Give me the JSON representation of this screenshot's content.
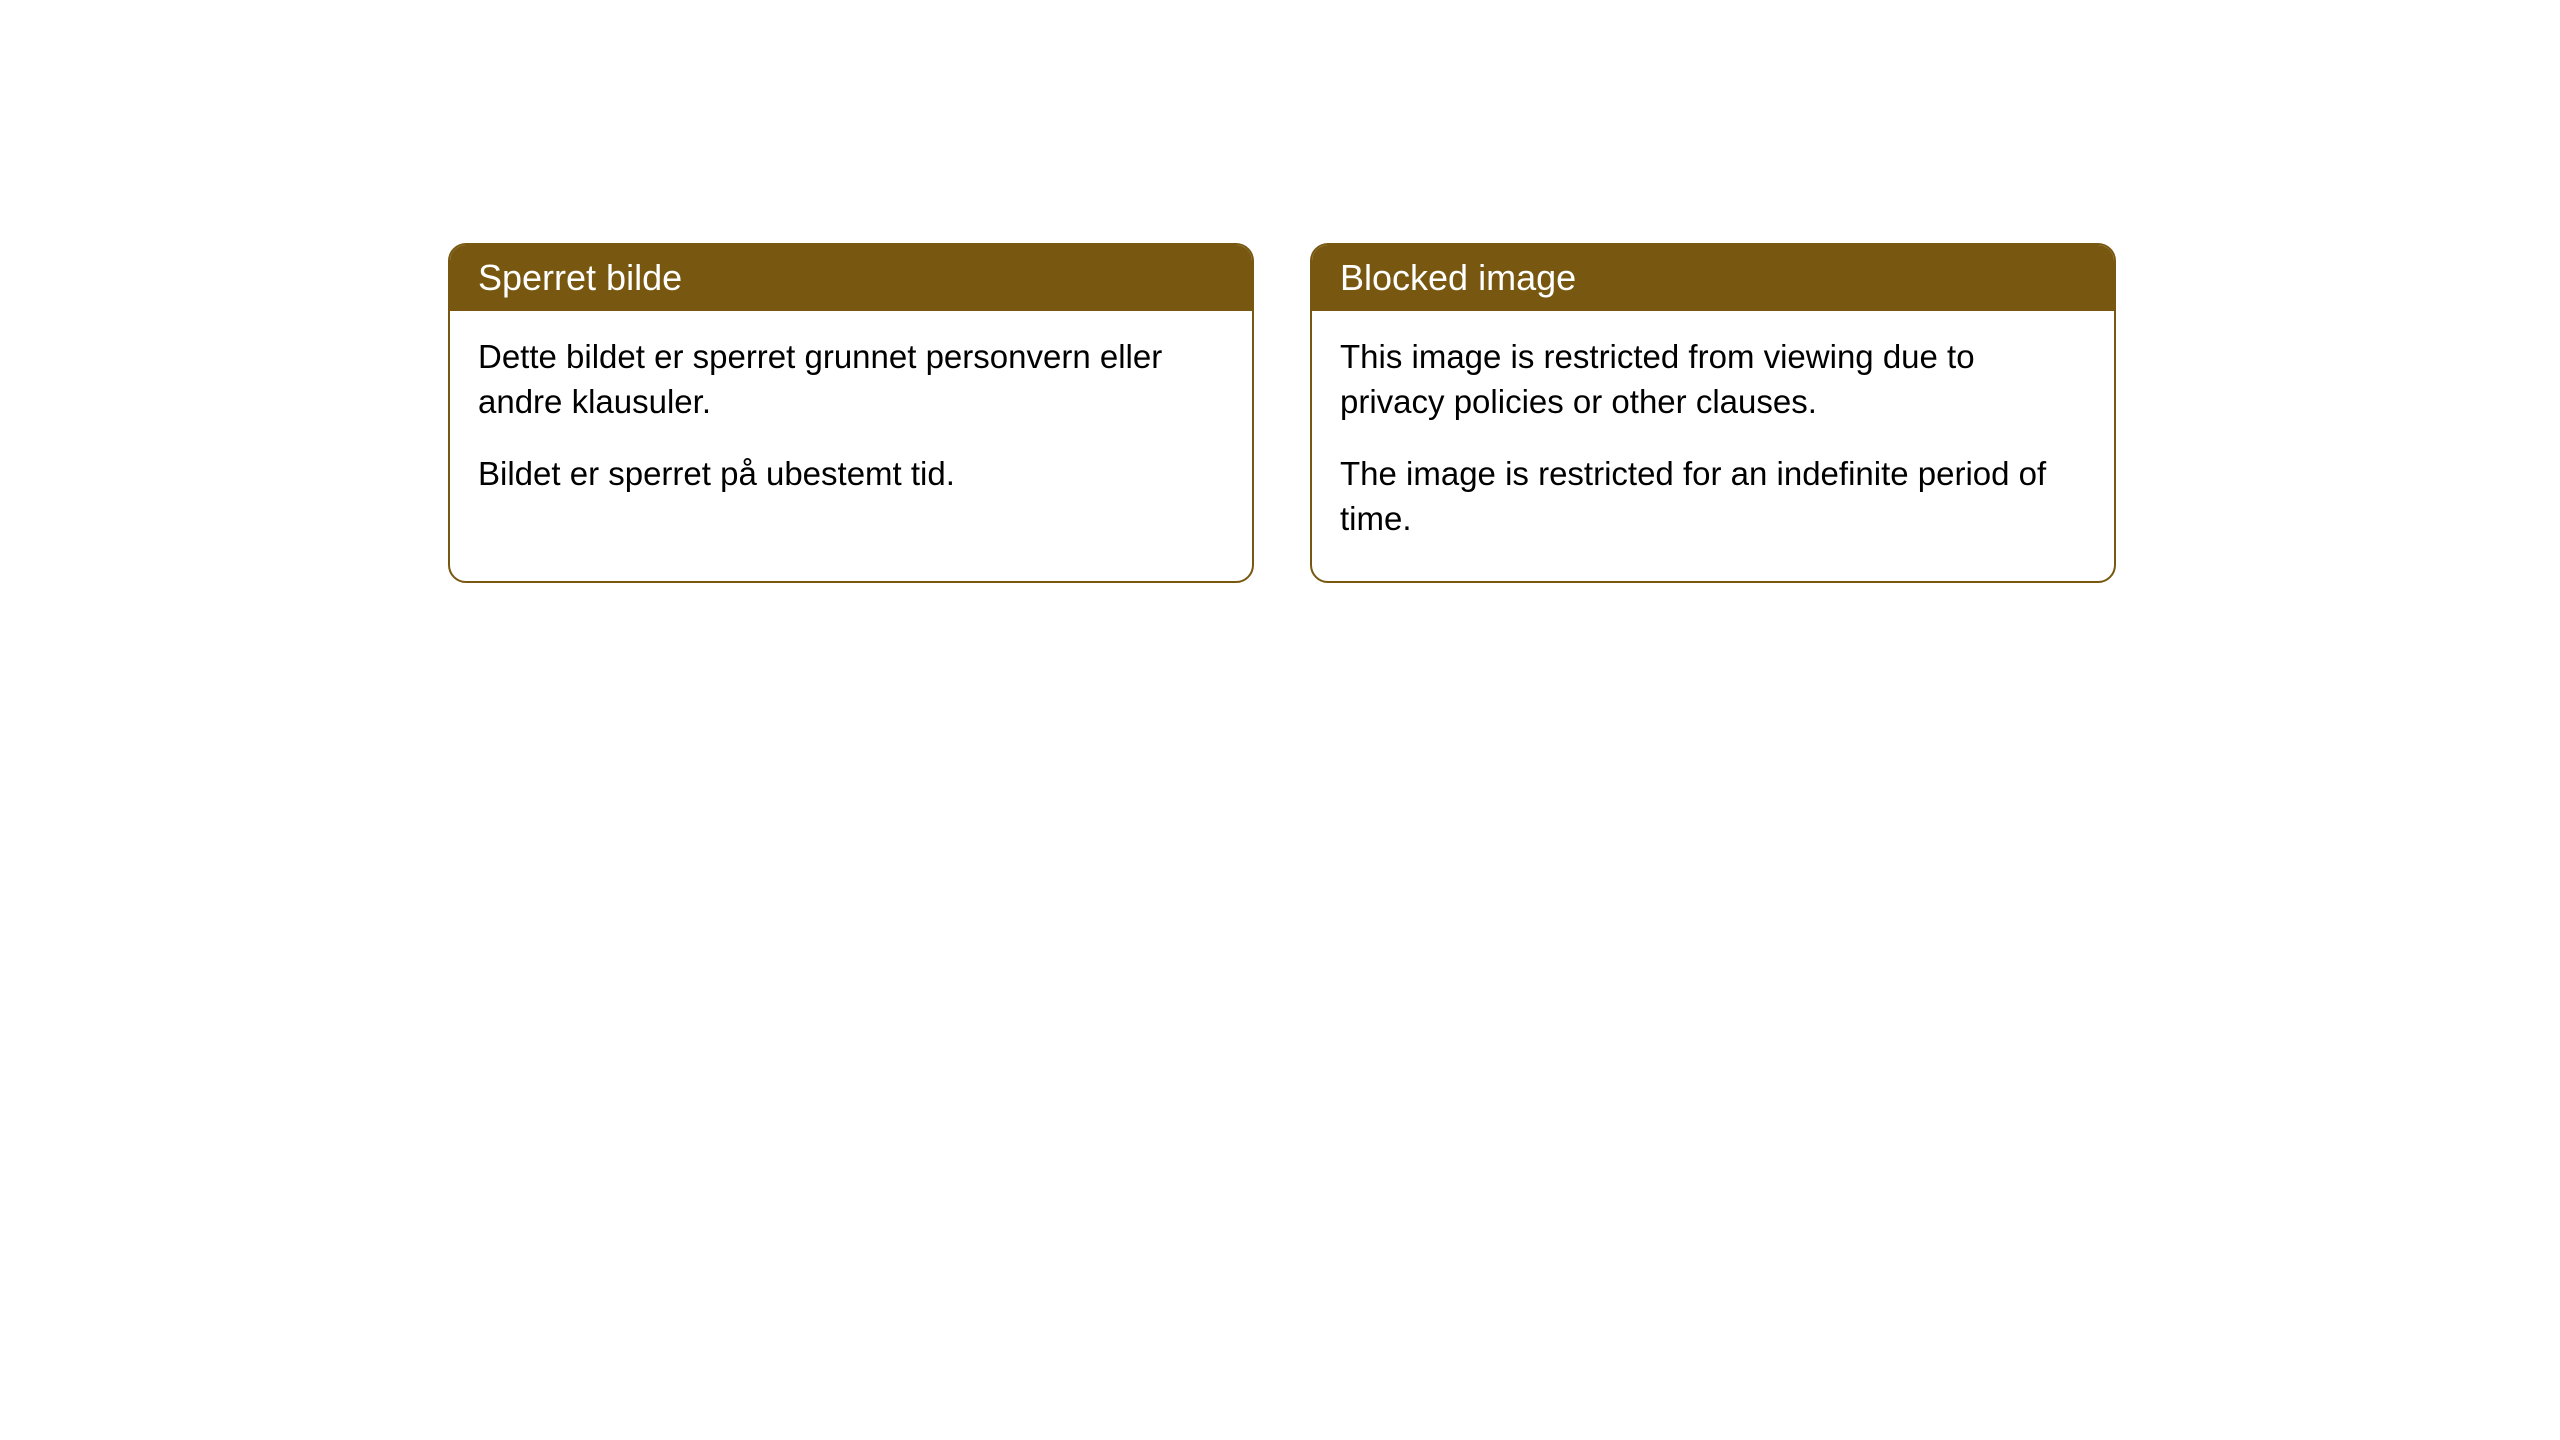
{
  "notices": {
    "left": {
      "title": "Sperret bilde",
      "para1": "Dette bildet er sperret grunnet personvern eller andre klausuler.",
      "para2": "Bildet er sperret på ubestemt tid."
    },
    "right": {
      "title": "Blocked image",
      "para1": "This image is restricted from viewing due to privacy policies or other clauses.",
      "para2": "The image is restricted for an indefinite period of time."
    }
  },
  "colors": {
    "header_bg": "#785810",
    "header_text": "#ffffff",
    "border": "#785810",
    "body_bg": "#ffffff",
    "body_text": "#000000"
  }
}
